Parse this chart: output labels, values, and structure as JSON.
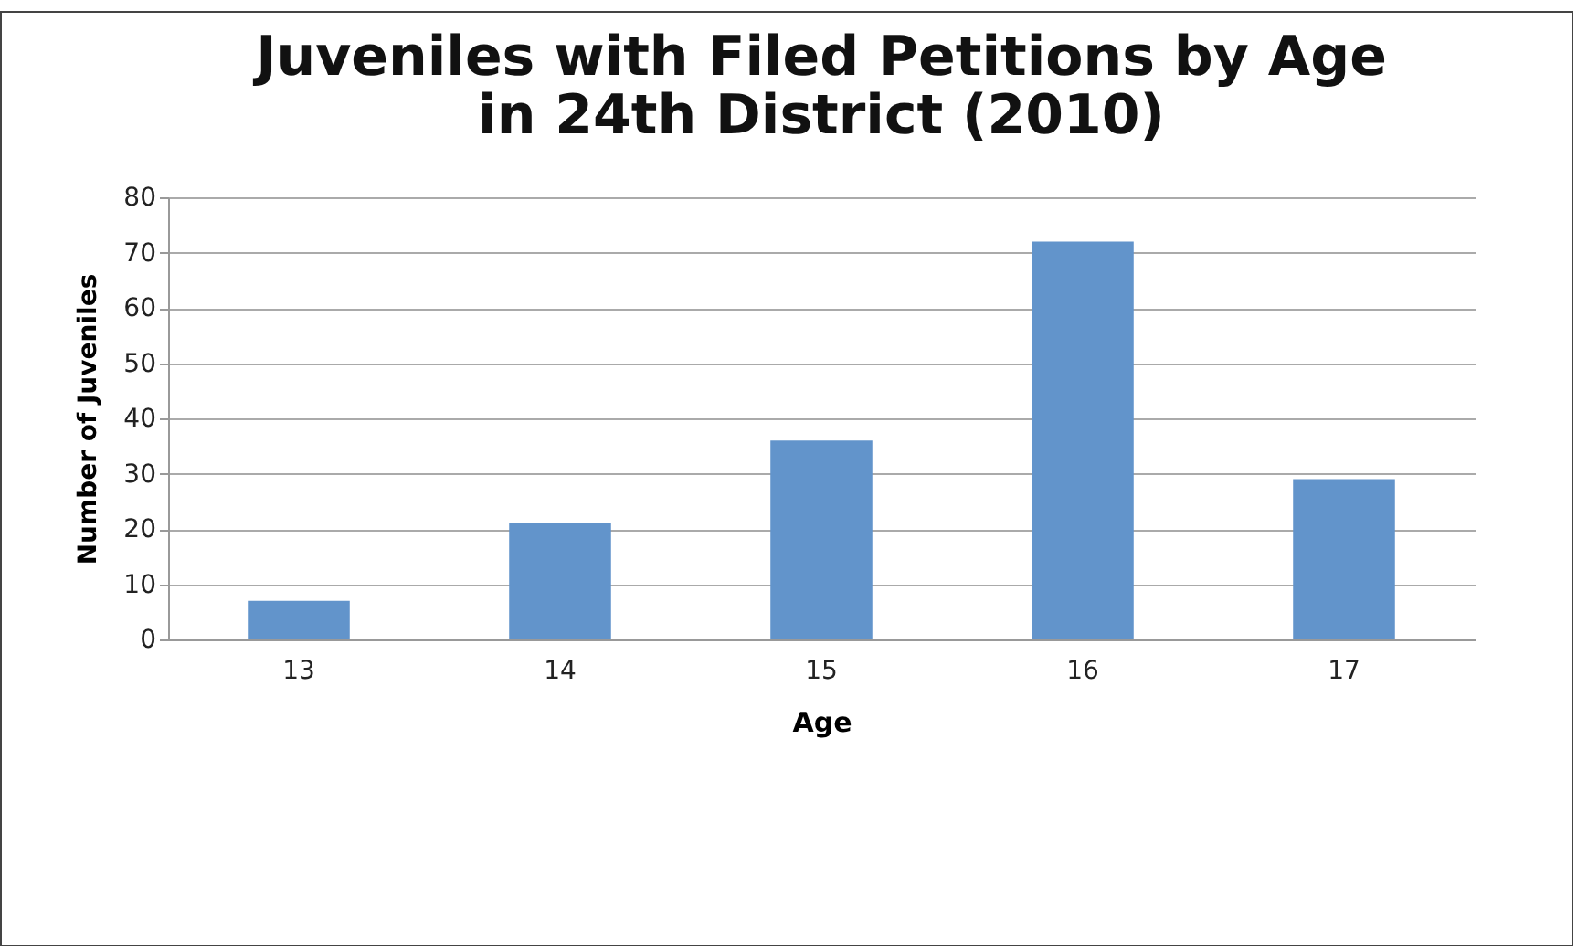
{
  "chart_data": {
    "type": "bar",
    "title": "Juveniles with Filed Petitions by Age\nin 24th District (2010)",
    "xlabel": "Age",
    "ylabel": "Number of Juveniles",
    "categories": [
      "13",
      "14",
      "15",
      "16",
      "17"
    ],
    "values": [
      7,
      21,
      36,
      72,
      29
    ],
    "color": "#6294cb",
    "ylim": [
      0,
      80
    ],
    "yticks": [
      0,
      10,
      20,
      30,
      40,
      50,
      60,
      70,
      80
    ],
    "grid": "y"
  }
}
